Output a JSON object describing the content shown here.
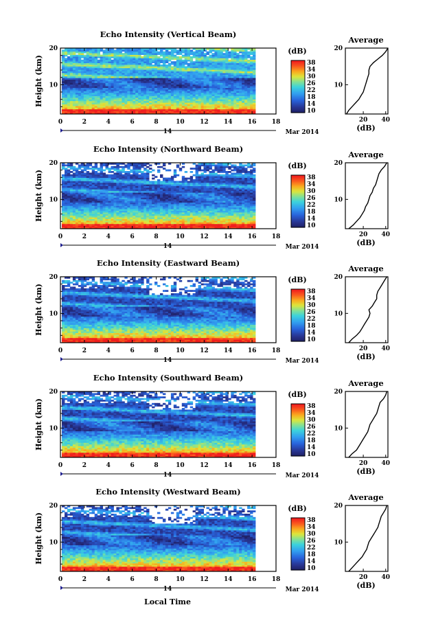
{
  "chart_data": {
    "type": "heatmap",
    "xlabel": "Local Time",
    "ylabel": "Height (km)",
    "xlim": [
      0,
      18
    ],
    "ylim": [
      2,
      20
    ],
    "x_ticks": [
      "0",
      "2",
      "4",
      "6",
      "8",
      "10",
      "12",
      "14",
      "16",
      "18"
    ],
    "y_ticks": [
      "10",
      "20"
    ],
    "date_day": "14",
    "date_month_year": "Mar 2014",
    "colorbar": {
      "unit": "(dB)",
      "ticks": [
        "38",
        "34",
        "30",
        "26",
        "22",
        "18",
        "14",
        "10"
      ],
      "range": [
        10,
        40
      ]
    },
    "profile": {
      "title": "Average",
      "xlabel": "(dB)",
      "x_ticks": [
        "20",
        "40"
      ],
      "xlim": [
        4,
        42
      ]
    },
    "panels": [
      {
        "title": "Echo Intensity (Vertical Beam)",
        "gap": 0.06,
        "profile": [
          [
            20,
            42
          ],
          [
            19,
            40
          ],
          [
            18,
            37
          ],
          [
            17,
            33
          ],
          [
            16,
            29
          ],
          [
            15,
            26
          ],
          [
            14,
            25
          ],
          [
            13,
            25
          ],
          [
            12,
            24
          ],
          [
            11,
            23
          ],
          [
            10,
            22
          ],
          [
            9,
            21
          ],
          [
            8,
            20
          ],
          [
            7,
            18
          ],
          [
            6,
            16
          ],
          [
            5,
            13
          ],
          [
            4,
            10
          ],
          [
            3,
            7
          ],
          [
            2,
            5
          ]
        ]
      },
      {
        "title": "Echo Intensity (Northward Beam)",
        "gap": 0.32,
        "profile": [
          [
            20,
            41
          ],
          [
            19,
            39
          ],
          [
            18,
            36
          ],
          [
            17,
            34
          ],
          [
            16,
            33
          ],
          [
            15,
            32
          ],
          [
            14,
            31
          ],
          [
            13,
            29
          ],
          [
            12,
            28
          ],
          [
            11,
            26
          ],
          [
            10,
            25
          ],
          [
            9,
            24
          ],
          [
            8,
            22
          ],
          [
            7,
            21
          ],
          [
            6,
            19
          ],
          [
            5,
            17
          ],
          [
            4,
            14
          ],
          [
            3,
            11
          ],
          [
            2,
            7
          ]
        ]
      },
      {
        "title": "Echo Intensity (Eastward Beam)",
        "gap": 0.35,
        "profile": [
          [
            20,
            41
          ],
          [
            19,
            39
          ],
          [
            18,
            37
          ],
          [
            17,
            35
          ],
          [
            16,
            33
          ],
          [
            15,
            32
          ],
          [
            14,
            32
          ],
          [
            13,
            30
          ],
          [
            12,
            28
          ],
          [
            11,
            25
          ],
          [
            10,
            26
          ],
          [
            9,
            25
          ],
          [
            8,
            23
          ],
          [
            7,
            21
          ],
          [
            6,
            19
          ],
          [
            5,
            17
          ],
          [
            4,
            14
          ],
          [
            3,
            10
          ],
          [
            2,
            7
          ]
        ]
      },
      {
        "title": "Echo Intensity (Southward Beam)",
        "gap": 0.3,
        "profile": [
          [
            20,
            41
          ],
          [
            19,
            40
          ],
          [
            18,
            38
          ],
          [
            17,
            35
          ],
          [
            16,
            34
          ],
          [
            15,
            33
          ],
          [
            14,
            32
          ],
          [
            13,
            30
          ],
          [
            12,
            28
          ],
          [
            11,
            26
          ],
          [
            10,
            25
          ],
          [
            9,
            24
          ],
          [
            8,
            22
          ],
          [
            7,
            20
          ],
          [
            6,
            18
          ],
          [
            5,
            16
          ],
          [
            4,
            14
          ],
          [
            3,
            10
          ],
          [
            2,
            7
          ]
        ]
      },
      {
        "title": "Echo Intensity (Westward Beam)",
        "gap": 0.38,
        "profile": [
          [
            20,
            41
          ],
          [
            19,
            40
          ],
          [
            18,
            38
          ],
          [
            17,
            36
          ],
          [
            16,
            35
          ],
          [
            15,
            34
          ],
          [
            14,
            33
          ],
          [
            13,
            31
          ],
          [
            12,
            29
          ],
          [
            11,
            27
          ],
          [
            10,
            25
          ],
          [
            9,
            24
          ],
          [
            8,
            23
          ],
          [
            7,
            21
          ],
          [
            6,
            19
          ],
          [
            5,
            16
          ],
          [
            4,
            13
          ],
          [
            3,
            10
          ],
          [
            2,
            7
          ]
        ]
      }
    ]
  }
}
